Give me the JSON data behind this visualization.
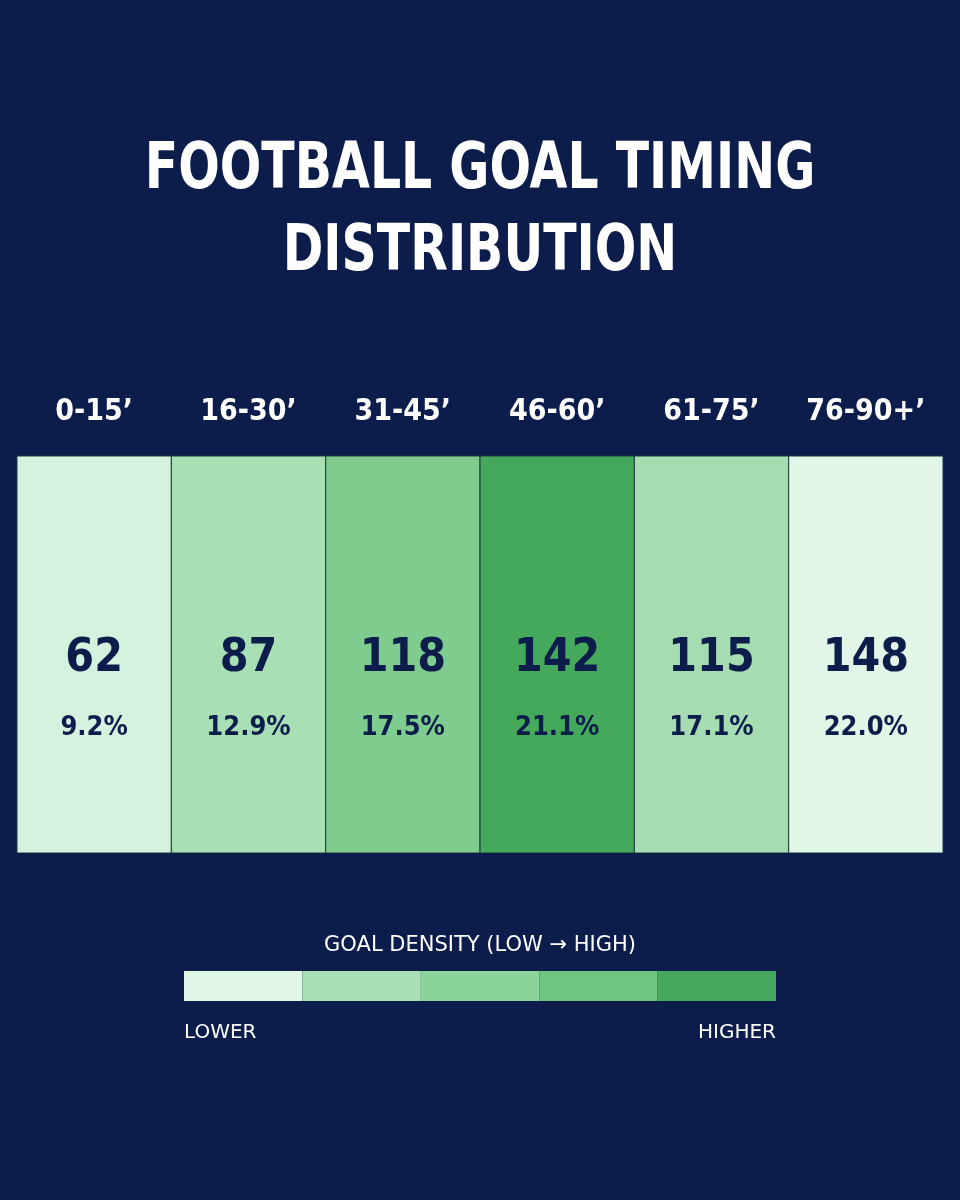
{
  "chart_data": {
    "type": "heatmap",
    "title": "FOOTBALL GOAL TIMING\nDISTRIBUTION",
    "categories": [
      "0-15’",
      "16-30’",
      "31-45’",
      "46-60’",
      "61-75’",
      "76-90+’"
    ],
    "cells": [
      [
        62,
        87,
        118,
        142,
        115,
        148
      ]
    ],
    "y_categories": [
      null
    ],
    "data_labels": true,
    "colors": [
      "#d4f3de",
      "#a9dfb5",
      "#7fcc8e",
      "#44a95a",
      "#a6dcb2",
      "#e1f6e7"
    ],
    "clabel": "GOAL DENSITY (LOW → HIGH)",
    "annotations": [
      "9.2%",
      "12.9%",
      "17.5%",
      "21.1%",
      "17.1%",
      "22.0%",
      "LOWER",
      "HIGHER"
    ]
  }
}
